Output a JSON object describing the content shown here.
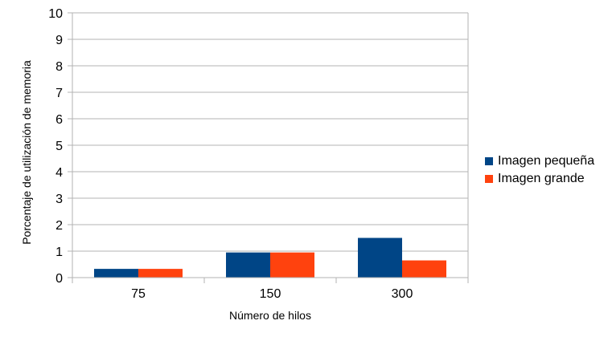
{
  "chart_data": {
    "type": "bar",
    "categories": [
      "75",
      "150",
      "300"
    ],
    "series": [
      {
        "name": "Imagen pequeña",
        "color": "#004586",
        "values": [
          0.33,
          0.95,
          1.5
        ]
      },
      {
        "name": "Imagen grande",
        "color": "#ff420e",
        "values": [
          0.33,
          0.95,
          0.65
        ]
      }
    ],
    "xlabel": "Número de hilos",
    "ylabel": "Porcentaje de utilización de memoria",
    "ylim": [
      0,
      10
    ],
    "yticks": [
      "0",
      "1",
      "2",
      "3",
      "4",
      "5",
      "6",
      "7",
      "8",
      "9",
      "10"
    ],
    "grid": true,
    "legend": "right"
  }
}
